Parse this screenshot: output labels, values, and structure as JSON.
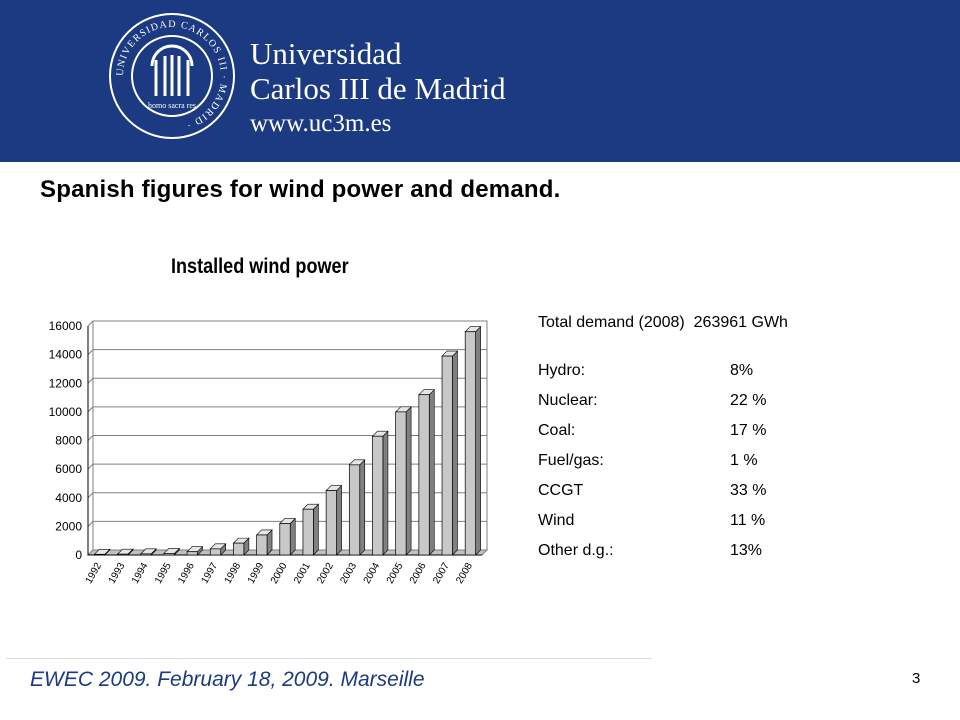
{
  "header": {
    "line1": "Universidad",
    "line2": "Carlos III de Madrid",
    "url": "www.uc3m.es",
    "seal_text": "UNIVERSIDAD CARLOS III · MADRID ·",
    "seal_motto": "homo sacra res",
    "brand_color": "#1b3a82"
  },
  "slide": {
    "title": "Spanish figures for wind power and demand.",
    "footer": "EWEC 2009. February 18, 2009. Marseille",
    "page": "3"
  },
  "stats": {
    "demand_label": "Total demand (2008)",
    "demand_value": "263961 GWh",
    "rows": [
      {
        "label": "Hydro:",
        "value": "8%"
      },
      {
        "label": "Nuclear:",
        "value": "22 %"
      },
      {
        "label": "Coal:",
        "value": "17 %"
      },
      {
        "label": "Fuel/gas:",
        "value": "1 %"
      },
      {
        "label": "CCGT",
        "value": "33 %"
      },
      {
        "label": "Wind",
        "value": "11 %"
      },
      {
        "label": "Other d.g.:",
        "value": "13%"
      }
    ]
  },
  "chart_data": {
    "type": "bar",
    "title": "Installed wind power",
    "xlabel": "",
    "ylabel": "",
    "categories": [
      "1992",
      "1993",
      "1994",
      "1995",
      "1996",
      "1997",
      "1998",
      "1999",
      "2000",
      "2001",
      "2002",
      "2003",
      "2004",
      "2005",
      "2006",
      "2007",
      "2008"
    ],
    "values": [
      50,
      60,
      80,
      110,
      230,
      430,
      830,
      1400,
      2200,
      3200,
      4500,
      6300,
      8300,
      10000,
      11200,
      13900,
      15600
    ],
    "ylim": [
      0,
      16000
    ],
    "yticks": [
      0,
      2000,
      4000,
      6000,
      8000,
      10000,
      12000,
      14000,
      16000
    ],
    "grid": true,
    "bar_color": "#c8c8c8"
  }
}
